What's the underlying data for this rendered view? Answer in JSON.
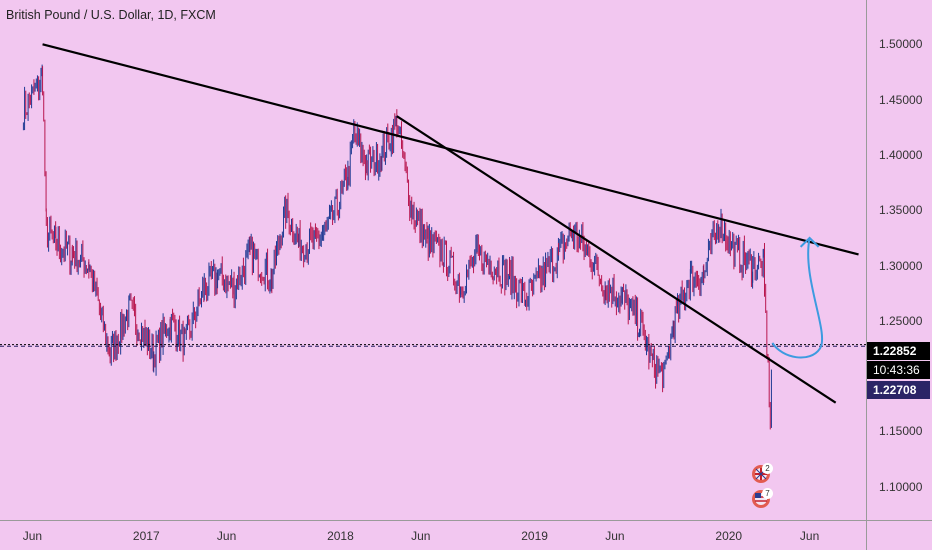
{
  "title": "British Pound / U.S. Dollar, 1D, FXCM",
  "colors": {
    "background": "#f2c7f0",
    "up": "#1f3a93",
    "down": "#b8174f",
    "trendline": "#000000",
    "arrow": "#3d9be0",
    "current_price_box": "#000000",
    "bid_box": "#2b2466"
  },
  "price_axis": {
    "labels": [
      "1.50000",
      "1.45000",
      "1.40000",
      "1.35000",
      "1.30000",
      "1.25000",
      "1.15000",
      "1.10000"
    ]
  },
  "time_axis": {
    "labels": [
      "Jun",
      "2017",
      "Jun",
      "2018",
      "Jun",
      "2019",
      "Jun",
      "2020",
      "Jun"
    ]
  },
  "price_boxes": {
    "last": "1.22852",
    "countdown": "10:43:36",
    "bid": "1.22708"
  },
  "events": [
    {
      "flag": "uk-flag-icon",
      "count": "2"
    },
    {
      "flag": "us-flag-icon",
      "count": "7"
    }
  ],
  "chart_data": {
    "type": "line",
    "title": "British Pound / U.S. Dollar, 1D, FXCM",
    "xlabel": "",
    "ylabel": "",
    "ylim": [
      1.07,
      1.54
    ],
    "x": [
      "2016-05-15",
      "2016-06-20",
      "2016-06-27",
      "2016-07-15",
      "2016-08-15",
      "2016-09-15",
      "2016-10-10",
      "2016-10-25",
      "2016-12-01",
      "2017-01-15",
      "2017-02-15",
      "2017-03-15",
      "2017-04-20",
      "2017-05-15",
      "2017-06-15",
      "2017-07-15",
      "2017-08-25",
      "2017-09-20",
      "2017-10-15",
      "2017-11-15",
      "2017-12-15",
      "2018-01-15",
      "2018-01-26",
      "2018-02-20",
      "2018-03-20",
      "2018-04-17",
      "2018-05-15",
      "2018-06-15",
      "2018-07-15",
      "2018-08-15",
      "2018-09-15",
      "2018-10-15",
      "2018-11-15",
      "2018-12-15",
      "2019-01-15",
      "2019-02-15",
      "2019-03-13",
      "2019-04-15",
      "2019-05-15",
      "2019-06-15",
      "2019-07-15",
      "2019-08-12",
      "2019-09-03",
      "2019-09-20",
      "2019-10-21",
      "2019-11-15",
      "2019-12-13",
      "2020-01-15",
      "2020-02-15",
      "2020-03-06",
      "2020-03-19",
      "2020-03-23"
    ],
    "series": [
      {
        "values": [
          1.44,
          1.47,
          1.33,
          1.32,
          1.31,
          1.3,
          1.25,
          1.22,
          1.26,
          1.22,
          1.25,
          1.23,
          1.28,
          1.29,
          1.28,
          1.31,
          1.29,
          1.35,
          1.32,
          1.32,
          1.34,
          1.38,
          1.42,
          1.39,
          1.4,
          1.43,
          1.35,
          1.32,
          1.31,
          1.28,
          1.31,
          1.3,
          1.29,
          1.27,
          1.29,
          1.31,
          1.33,
          1.31,
          1.28,
          1.27,
          1.25,
          1.21,
          1.2,
          1.25,
          1.29,
          1.29,
          1.34,
          1.31,
          1.3,
          1.3,
          1.16,
          1.23
        ]
      }
    ],
    "trendlines": [
      {
        "from": [
          "2016-06-20",
          1.5
        ],
        "to": [
          "2020-09-01",
          1.31
        ]
      },
      {
        "from": [
          "2018-04-17",
          1.435
        ],
        "to": [
          "2020-07-20",
          1.176
        ]
      }
    ],
    "projection": {
      "from": [
        "2020-03-23",
        1.23
      ],
      "via": [
        "2020-04-25",
        1.225
      ],
      "to": [
        "2020-06-01",
        1.325
      ]
    },
    "horizontal_lines": [
      1.22852,
      1.22708
    ]
  }
}
